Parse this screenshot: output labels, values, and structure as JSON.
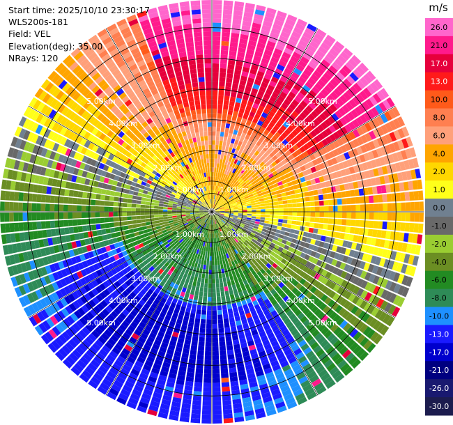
{
  "info": {
    "start_time": "Start time: 2025/10/10 23:30:17",
    "site": "WLS200s-181",
    "field": "Field: VEL",
    "elevation": "Elevation(deg): 35.00",
    "nrays": "NRays: 120"
  },
  "chart_data": {
    "type": "heatmap",
    "projection": "polar-ppi",
    "field": "VEL",
    "rays": 120,
    "elevation_deg": 35.0,
    "range_rings_km": [
      1.0,
      2.0,
      3.0,
      4.0,
      5.0,
      6.0
    ],
    "range_ring_labels": [
      "1.00km",
      "2.00km",
      "3.00km",
      "4.00km",
      "5.00km"
    ],
    "max_range_km": 6.9,
    "grid": true,
    "colorbar": {
      "unit": "m/s",
      "ticks": [
        "26.0",
        "21.0",
        "17.0",
        "13.0",
        "10.0",
        "8.0",
        "6.0",
        "4.0",
        "2.0",
        "1.0",
        "0.0",
        "-1.0",
        "-2.0",
        "-4.0",
        "-6.0",
        "-8.0",
        "-10.0",
        "-13.0",
        "-17.0",
        "-21.0",
        "-26.0",
        "-30.0"
      ],
      "boundaries": [
        30,
        26,
        21,
        17,
        13,
        10,
        8,
        6,
        4,
        2,
        1,
        0,
        -1,
        -2,
        -4,
        -6,
        -8,
        -10,
        -13,
        -17,
        -21,
        -26,
        -30
      ],
      "colors": [
        "#ff66cc",
        "#ff1a8c",
        "#e6003c",
        "#ff1a1a",
        "#ff5a1a",
        "#ff7f50",
        "#ffa07a",
        "#ffa500",
        "#ffd700",
        "#ffff1a",
        "#708090",
        "#696969",
        "#9acd32",
        "#6b8e23",
        "#228b22",
        "#2e8b57",
        "#1e90ff",
        "#1a1aff",
        "#0000cd",
        "#000080",
        "#191970",
        "#1c1c4e"
      ]
    },
    "wind_pattern": {
      "description": "radial velocity pattern",
      "positive_bearing_deg": 20,
      "negative_bearing_deg": 200,
      "peak_positive_ms": 26,
      "peak_negative_ms": -13
    }
  }
}
